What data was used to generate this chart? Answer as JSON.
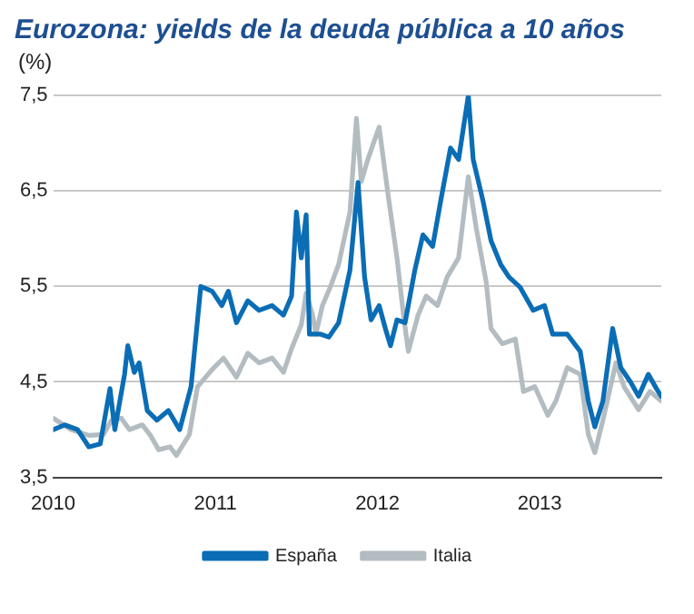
{
  "chart_data": {
    "type": "line",
    "title": "Eurozona: yields de la deuda pública a 10 años",
    "ylabel": "(%)",
    "xlim": [
      2010,
      2013.75
    ],
    "xticks": [
      2010,
      2011,
      2012,
      2013
    ],
    "ylim": [
      3.5,
      7.5
    ],
    "yticks": [
      {
        "value": 3.5,
        "label": "3,5"
      },
      {
        "value": 4.5,
        "label": "4,5"
      },
      {
        "value": 5.5,
        "label": "5,5"
      },
      {
        "value": 6.5,
        "label": "6,5"
      },
      {
        "value": 7.5,
        "label": "7,5"
      }
    ],
    "grid": "y",
    "legend": "bottom",
    "marker": "none",
    "line_style": "solid",
    "series": [
      {
        "name": "España",
        "color": "#0a6db5",
        "x": [
          2010,
          2010.07,
          2010.15,
          2010.22,
          2010.29,
          2010.35,
          2010.38,
          2010.44,
          2010.46,
          2010.5,
          2010.53,
          2010.58,
          2010.64,
          2010.71,
          2010.78,
          2010.85,
          2010.91,
          2010.98,
          2011.04,
          2011.08,
          2011.13,
          2011.2,
          2011.27,
          2011.35,
          2011.42,
          2011.47,
          2011.5,
          2011.53,
          2011.56,
          2011.58,
          2011.65,
          2011.7,
          2011.76,
          2011.83,
          2011.88,
          2011.92,
          2011.96,
          2012.01,
          2012.05,
          2012.08,
          2012.12,
          2012.17,
          2012.23,
          2012.28,
          2012.34,
          2012.39,
          2012.45,
          2012.5,
          2012.56,
          2012.59,
          2012.65,
          2012.7,
          2012.76,
          2012.81,
          2012.88,
          2012.96,
          2013.03,
          2013.08,
          2013.17,
          2013.25,
          2013.3,
          2013.34,
          2013.39,
          2013.45,
          2013.5,
          2013.56,
          2013.61,
          2013.67,
          2013.72,
          2013.75
        ],
        "values": [
          4.0,
          4.05,
          4.0,
          3.82,
          3.85,
          4.43,
          4.0,
          4.58,
          4.88,
          4.6,
          4.7,
          4.2,
          4.1,
          4.2,
          4.0,
          4.45,
          5.5,
          5.45,
          5.3,
          5.45,
          5.12,
          5.35,
          5.25,
          5.3,
          5.2,
          5.4,
          6.28,
          5.8,
          6.25,
          5.0,
          5.0,
          4.97,
          5.12,
          5.67,
          6.59,
          5.6,
          5.15,
          5.3,
          5.05,
          4.88,
          5.15,
          5.12,
          5.67,
          6.04,
          5.92,
          6.4,
          6.95,
          6.83,
          7.5,
          6.83,
          6.4,
          5.98,
          5.73,
          5.6,
          5.49,
          5.25,
          5.3,
          5.0,
          5.0,
          4.82,
          4.3,
          4.03,
          4.3,
          5.06,
          4.65,
          4.5,
          4.35,
          4.58,
          4.43,
          4.35
        ]
      },
      {
        "name": "Italia",
        "color": "#b3bcc1",
        "x": [
          2010,
          2010.11,
          2010.22,
          2010.31,
          2010.36,
          2010.42,
          2010.47,
          2010.55,
          2010.6,
          2010.65,
          2010.72,
          2010.76,
          2010.84,
          2010.89,
          2010.98,
          2011.05,
          2011.13,
          2011.2,
          2011.27,
          2011.35,
          2011.42,
          2011.47,
          2011.53,
          2011.56,
          2011.6,
          2011.62,
          2011.66,
          2011.71,
          2011.76,
          2011.83,
          2011.87,
          2011.9,
          2011.94,
          2012.01,
          2012.07,
          2012.12,
          2012.16,
          2012.19,
          2012.25,
          2012.3,
          2012.37,
          2012.43,
          2012.5,
          2012.56,
          2012.61,
          2012.67,
          2012.7,
          2012.77,
          2012.85,
          2012.9,
          2012.97,
          2013.05,
          2013.1,
          2013.17,
          2013.25,
          2013.3,
          2013.34,
          2013.39,
          2013.47,
          2013.52,
          2013.61,
          2013.68,
          2013.75
        ],
        "values": [
          4.12,
          4.0,
          3.94,
          3.95,
          4.1,
          4.12,
          4.0,
          4.05,
          3.94,
          3.79,
          3.82,
          3.73,
          3.95,
          4.45,
          4.63,
          4.75,
          4.55,
          4.8,
          4.7,
          4.75,
          4.6,
          4.85,
          5.1,
          5.43,
          5.2,
          5.0,
          5.3,
          5.5,
          5.73,
          6.28,
          7.26,
          6.6,
          6.83,
          7.17,
          6.4,
          5.8,
          5.2,
          4.82,
          5.2,
          5.4,
          5.3,
          5.6,
          5.8,
          6.65,
          6.1,
          5.55,
          5.06,
          4.9,
          4.95,
          4.4,
          4.45,
          4.15,
          4.3,
          4.65,
          4.58,
          3.95,
          3.76,
          4.1,
          4.7,
          4.45,
          4.21,
          4.4,
          4.3
        ]
      }
    ]
  }
}
